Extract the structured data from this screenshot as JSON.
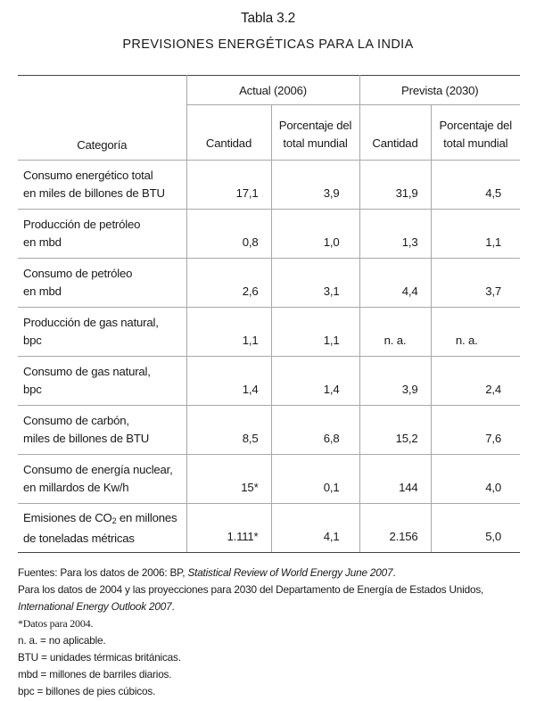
{
  "caption": {
    "title": "Tabla 3.2",
    "subtitle": "PREVISIONES ENERGÉTICAS PARA LA INDIA"
  },
  "table": {
    "header": {
      "category_label": "Categoría",
      "group_actual": "Actual (2006)",
      "group_prevista": "Prevista (2030)",
      "cantidad": "Cantidad",
      "pct_line1": "Porcentaje del",
      "pct_line2": "total mundial"
    },
    "rows": [
      {
        "line1": "Consumo energético total",
        "line2": "en miles de billones de BTU",
        "actual_cantidad": "17,1",
        "actual_pct": "3,9",
        "prev_cantidad": "31,9",
        "prev_pct": "4,5"
      },
      {
        "line1": "Producción de petróleo",
        "line2": "en mbd",
        "actual_cantidad": "0,8",
        "actual_pct": "1,0",
        "prev_cantidad": "1,3",
        "prev_pct": "1,1"
      },
      {
        "line1": "Consumo de petróleo",
        "line2": "en mbd",
        "actual_cantidad": "2,6",
        "actual_pct": "3,1",
        "prev_cantidad": "4,4",
        "prev_pct": "3,7"
      },
      {
        "line1": "Producción de gas natural,",
        "line2": "bpc",
        "actual_cantidad": "1,1",
        "actual_pct": "1,1",
        "prev_cantidad": "n. a.",
        "prev_pct": "n. a."
      },
      {
        "line1": "Consumo de gas natural,",
        "line2": "bpc",
        "actual_cantidad": "1,4",
        "actual_pct": "1,4",
        "prev_cantidad": "3,9",
        "prev_pct": "2,4"
      },
      {
        "line1": "Consumo de carbón,",
        "line2": "miles de billones de BTU",
        "actual_cantidad": "8,5",
        "actual_pct": "6,8",
        "prev_cantidad": "15,2",
        "prev_pct": "7,6"
      },
      {
        "line1": "Consumo de energía nuclear,",
        "line2": "en millardos de Kw/h",
        "actual_cantidad": "15*",
        "actual_pct": "0,1",
        "prev_cantidad": "144",
        "prev_pct": "4,0"
      },
      {
        "line1_a": "Emisiones de CO",
        "line1_sub": "2",
        "line1_b": " en millones",
        "line2": "de toneladas métricas",
        "actual_cantidad": "1.111*",
        "actual_pct": "4,1",
        "prev_cantidad": "2.156",
        "prev_pct": "5,0"
      }
    ]
  },
  "notes": {
    "source1_a": "Fuentes: Para los datos de 2006: BP, ",
    "source1_i": "Statistical Review of World Energy June 2007",
    "source1_b": ".",
    "source2_a": "Para los datos de 2004 y las proyecciones para 2030 del Departamento de Energía de Estados Unidos,",
    "source2_i": "International Energy Outlook 2007",
    "source2_b": ".",
    "footnote": "*Datos para 2004.",
    "na": "n. a. = no aplicable.",
    "btu": "BTU = unidades térmicas británicas.",
    "mbd": "mbd = millones de barriles diarios.",
    "bpc": "bpc = billones de pies cúbicos."
  }
}
